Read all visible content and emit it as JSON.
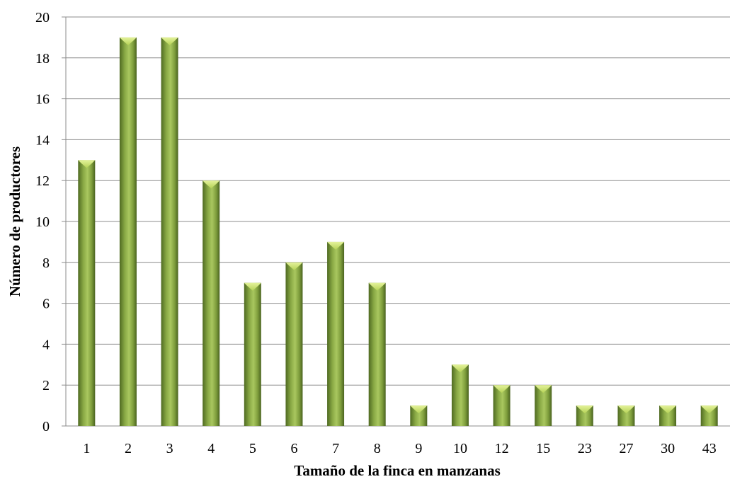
{
  "chart_data": {
    "type": "bar",
    "title": "",
    "xlabel": "Tamaño de la finca en manzanas",
    "ylabel": "Número de productores",
    "categories": [
      "1",
      "2",
      "3",
      "4",
      "5",
      "6",
      "7",
      "8",
      "9",
      "10",
      "12",
      "15",
      "23",
      "27",
      "30",
      "43"
    ],
    "values": [
      13,
      19,
      19,
      12,
      7,
      8,
      9,
      7,
      1,
      3,
      2,
      2,
      1,
      1,
      1,
      1
    ],
    "ylim": [
      0,
      20
    ],
    "yticks": [
      "0",
      "2",
      "4",
      "6",
      "8",
      "10",
      "12",
      "14",
      "16",
      "18",
      "20"
    ],
    "grid": true,
    "legend": "none",
    "colors": {
      "bar_light": "#c8e06a",
      "bar_mid": "#9bbb59",
      "bar_dark": "#5f7a2a",
      "grid": "#8c8c8c"
    }
  }
}
